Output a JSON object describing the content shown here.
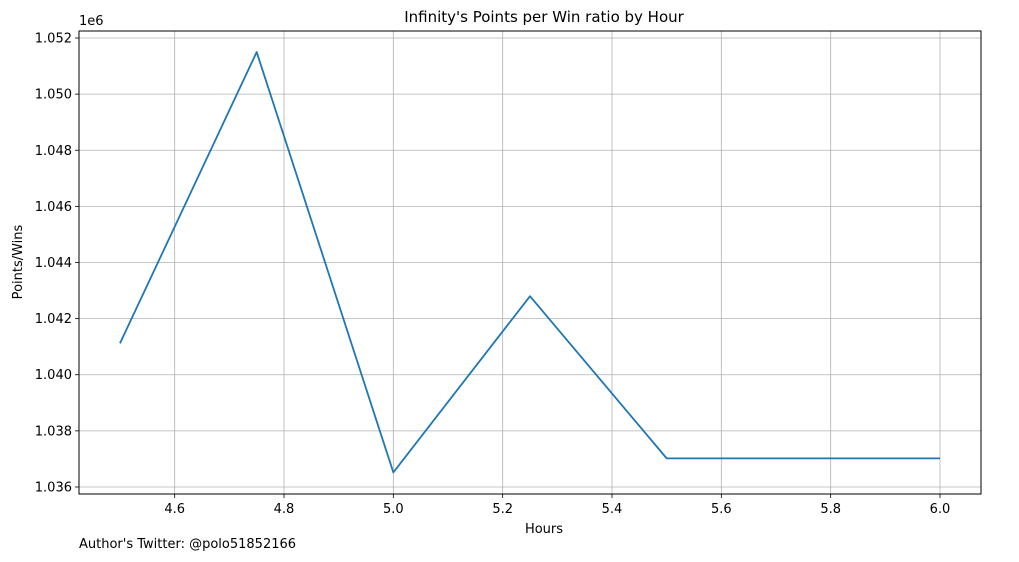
{
  "chart_data": {
    "type": "line",
    "title": "Infinity's Points per Win ratio by Hour",
    "xlabel": "Hours",
    "ylabel": "Points/Wins",
    "y_offset_label": "1e6",
    "x": [
      4.5,
      4.75,
      5.0,
      5.25,
      5.5,
      5.75,
      6.0
    ],
    "series": [
      {
        "values": [
          1.04112,
          1.0515,
          1.03652,
          1.0428,
          1.03702,
          1.03702,
          1.03702
        ],
        "color": "#1f77b4"
      }
    ],
    "xlim": [
      4.425,
      6.075
    ],
    "ylim": [
      1.03575,
      1.05225
    ],
    "xticks": [
      4.6,
      4.8,
      5.0,
      5.2,
      5.4,
      5.6,
      5.8,
      6.0
    ],
    "xtick_labels": [
      "4.6",
      "4.8",
      "5.0",
      "5.2",
      "5.4",
      "5.6",
      "5.8",
      "6.0"
    ],
    "yticks": [
      1.036,
      1.038,
      1.04,
      1.042,
      1.044,
      1.046,
      1.048,
      1.05,
      1.052
    ],
    "ytick_labels": [
      "1.036",
      "1.038",
      "1.040",
      "1.042",
      "1.044",
      "1.046",
      "1.048",
      "1.050",
      "1.052"
    ],
    "grid": true
  },
  "footer": {
    "text": "Author's Twitter: @polo51852166"
  }
}
